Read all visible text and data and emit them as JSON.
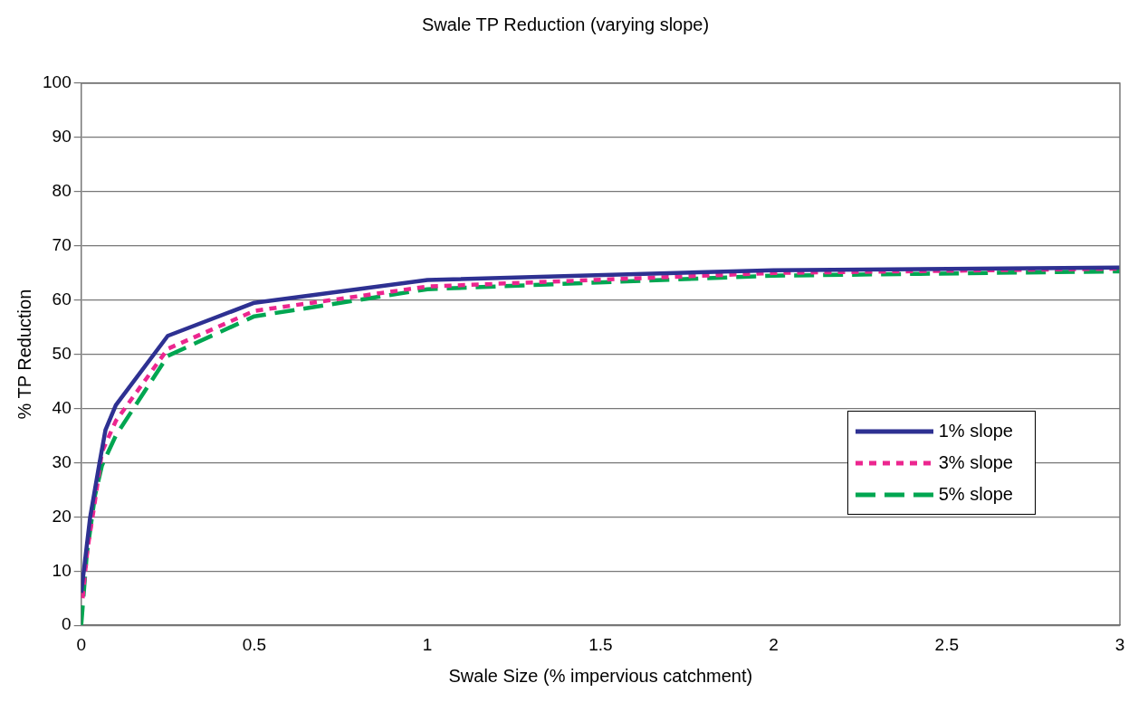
{
  "chart_data": {
    "type": "line",
    "title": "Swale TP Reduction (varying slope)",
    "xlabel": "Swale Size (% impervious catchment)",
    "ylabel": "% TP Reduction",
    "xlim": [
      0,
      3
    ],
    "xticks": [
      0,
      0.5,
      1,
      1.5,
      2,
      2.5,
      3
    ],
    "ylim": [
      0,
      100
    ],
    "yticks": [
      0,
      10,
      20,
      30,
      40,
      50,
      60,
      70,
      80,
      90,
      100
    ],
    "grid": "y",
    "legend": "right",
    "marker": "none",
    "series": [
      {
        "name": "1% slope",
        "color": "#2e3192",
        "line_style": "solid",
        "x": [
          0,
          0.026,
          0.053,
          0.07,
          0.1,
          0.25,
          0.5,
          1,
          2,
          3
        ],
        "values": [
          6,
          20,
          30,
          36,
          40.6,
          53.4,
          59.5,
          63.7,
          65.5,
          66
        ]
      },
      {
        "name": "3% slope",
        "color": "#ec268f",
        "line_style": "dotted",
        "x": [
          0.004,
          0.018,
          0.04,
          0.06,
          0.1,
          0.25,
          0.5,
          1,
          2,
          3
        ],
        "values": [
          5,
          14,
          23,
          32,
          37.7,
          51,
          58,
          62.5,
          65,
          65.8
        ]
      },
      {
        "name": "5% slope",
        "color": "#00a651",
        "line_style": "dashed",
        "x": [
          0,
          0.016,
          0.04,
          0.06,
          0.1,
          0.25,
          0.5,
          1,
          2,
          3
        ],
        "values": [
          0,
          13,
          24,
          29.5,
          35,
          49.7,
          57,
          62,
          64.5,
          65.3
        ]
      }
    ]
  }
}
